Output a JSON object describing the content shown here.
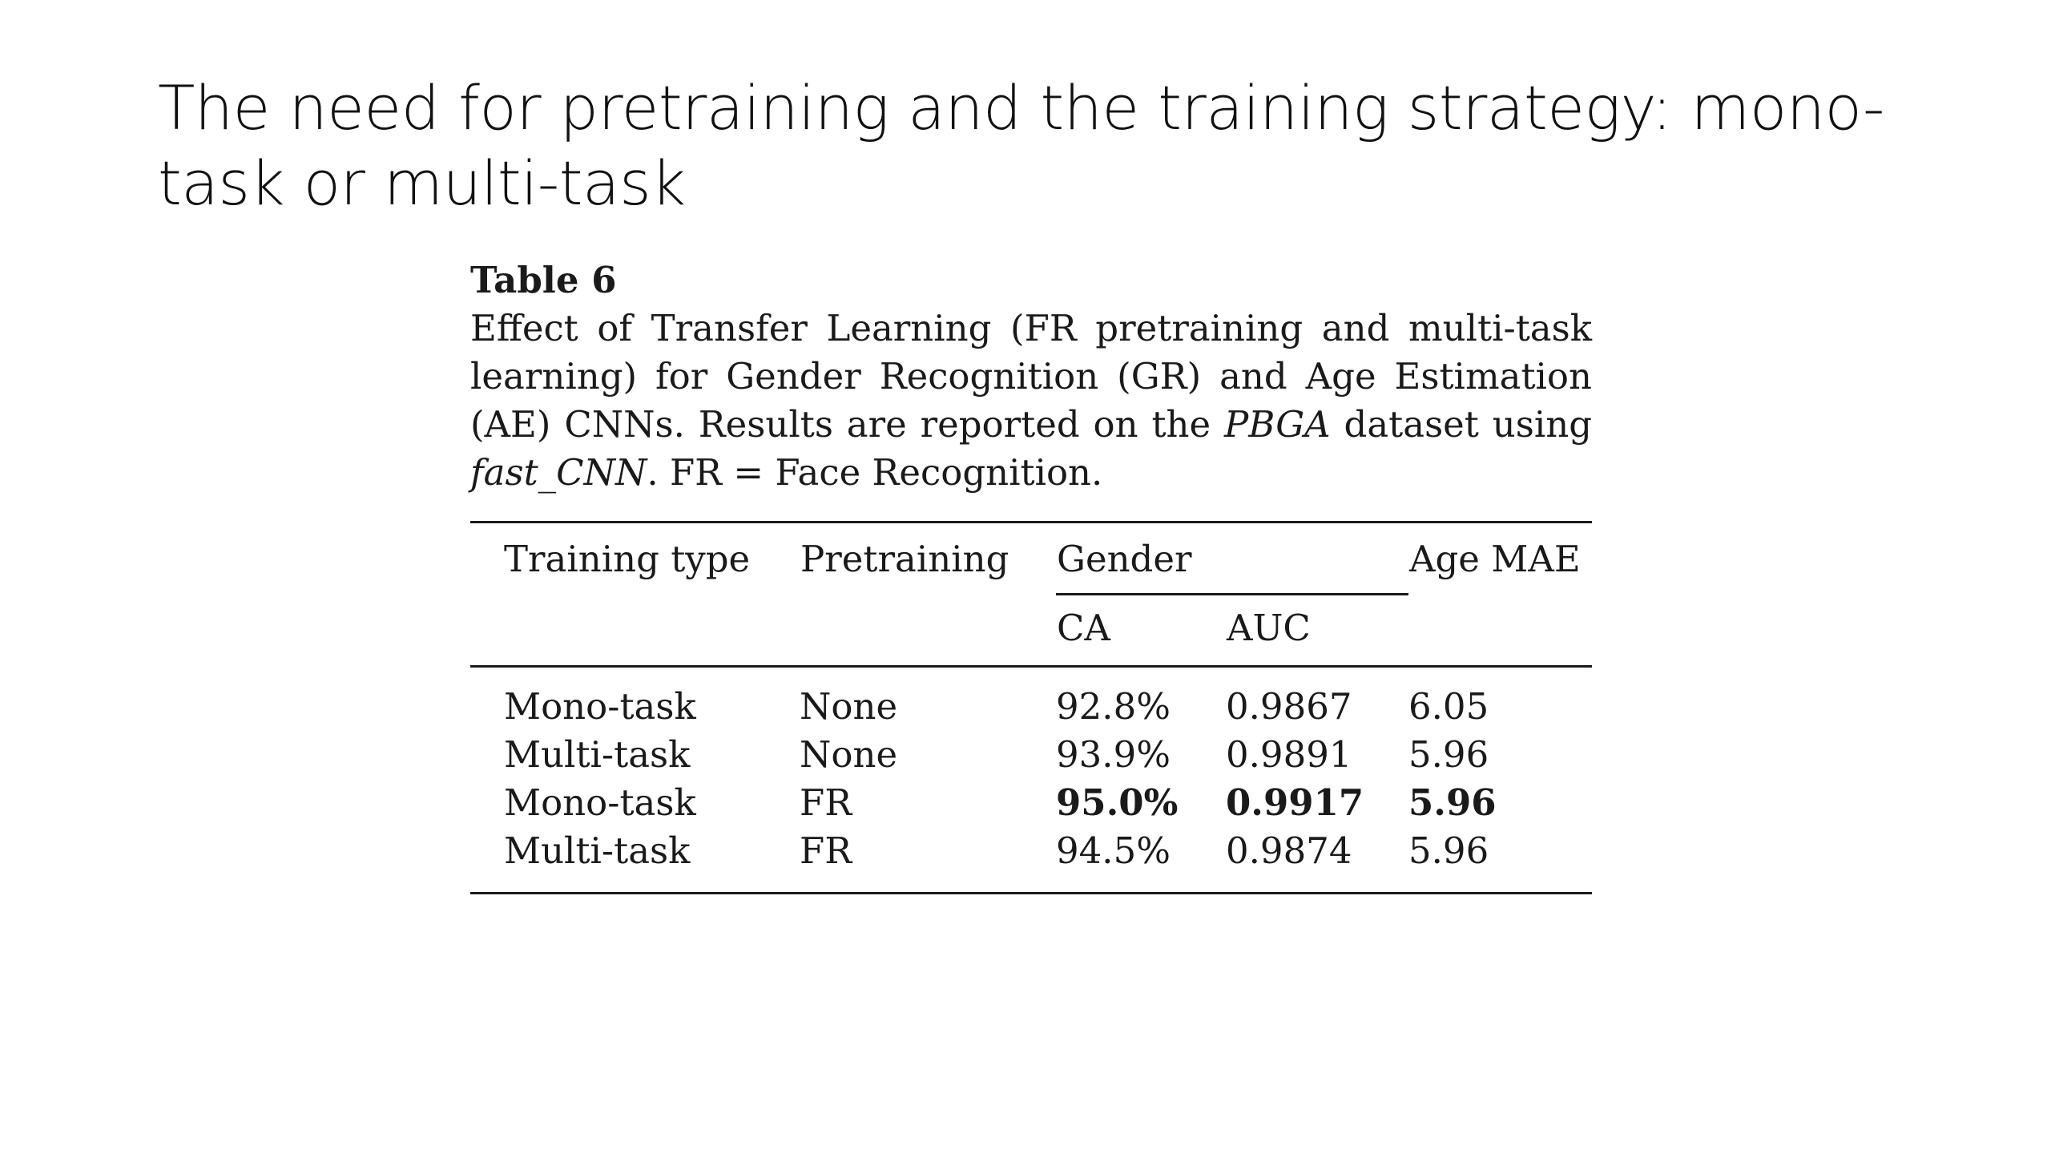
{
  "slide": {
    "title": "The need for pretraining and the training strategy: mono-task or multi-task"
  },
  "table": {
    "label": "Table 6",
    "caption": {
      "part1": "Effect of Transfer Learning (FR pretraining and multi-task learning) for Gender Recognition (GR) and Age Estimation (AE) CNNs. Results are reported on the ",
      "dataset": "PBGA",
      "part2": " dataset using ",
      "model": "fast_CNN",
      "part3": ". FR = Face Recognition."
    },
    "headers": {
      "training_type": "Training type",
      "pretraining": "Pretraining",
      "gender": "Gender",
      "ca": "CA",
      "auc": "AUC",
      "age_mae": "Age MAE"
    },
    "rows": [
      {
        "training_type": "Mono-task",
        "pretraining": "None",
        "ca": "92.8%",
        "auc": "0.9867",
        "age_mae": "6.05"
      },
      {
        "training_type": "Multi-task",
        "pretraining": "None",
        "ca": "93.9%",
        "auc": "0.9891",
        "age_mae": "5.96"
      },
      {
        "training_type": "Mono-task",
        "pretraining": "FR",
        "ca": "95.0%",
        "auc": "0.9917",
        "age_mae": "5.96"
      },
      {
        "training_type": "Multi-task",
        "pretraining": "FR",
        "ca": "94.5%",
        "auc": "0.9874",
        "age_mae": "5.96"
      }
    ]
  }
}
